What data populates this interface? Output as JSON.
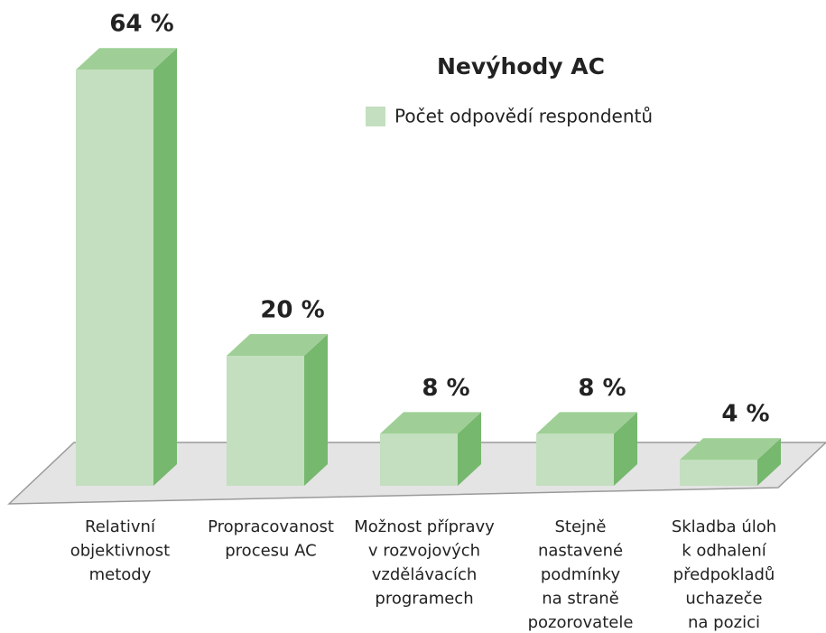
{
  "chart_data": {
    "type": "bar3d",
    "title": "Nevýhody AC",
    "categories": [
      [
        "Relativní",
        "objektivnost",
        "metody"
      ],
      [
        "Propracovanost",
        "procesu AC"
      ],
      [
        "Možnost přípravy",
        "v rozvojových",
        "vzdělávacích",
        "programech"
      ],
      [
        "Stejně",
        "nastavené",
        "podmínky",
        "na straně",
        "pozorovatele"
      ],
      [
        "Skladba úloh",
        "k odhalení",
        "předpokladů",
        "uchazeče",
        "na pozici"
      ]
    ],
    "series": [
      {
        "name": "Počet odpovědí respondentů",
        "color": "#c3dfbf",
        "values": [
          64,
          20,
          8,
          8,
          4
        ],
        "value_labels": [
          "64 %",
          "20 %",
          "8 %",
          "8 %",
          "4 %"
        ]
      }
    ]
  }
}
